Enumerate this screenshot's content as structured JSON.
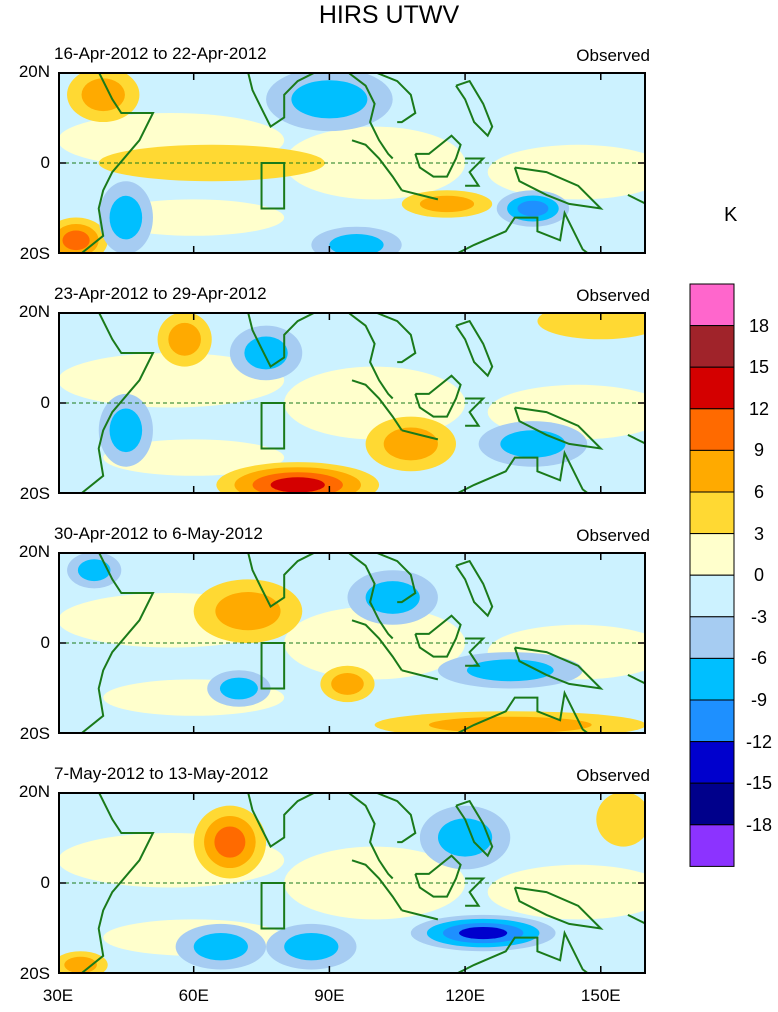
{
  "chart_data": {
    "type": "heatmap",
    "title": "HIRS UTWV",
    "units": "K",
    "x_ticks": [
      "30E",
      "60E",
      "90E",
      "120E",
      "150E"
    ],
    "x_tick_values": [
      30,
      60,
      90,
      120,
      150
    ],
    "y_ticks": [
      "20N",
      "0",
      "20S"
    ],
    "y_tick_values": [
      20,
      0,
      -20
    ],
    "lon_range": [
      30,
      160
    ],
    "lat_range": [
      -20,
      20
    ],
    "colorbar": {
      "levels": [
        18,
        15,
        12,
        9,
        6,
        3,
        0,
        -3,
        -6,
        -9,
        -12,
        -15,
        -18
      ],
      "colors": [
        "#ff66cc",
        "#a0232a",
        "#d40000",
        "#ff6a00",
        "#ffaa00",
        "#ffd933",
        "#ffffcc",
        "#ccf2ff",
        "#a6ccf2",
        "#00bfff",
        "#1e90ff",
        "#0000cd",
        "#00008b",
        "#8c33ff"
      ]
    },
    "panels": [
      {
        "label": "16-Apr-2012 to 22-Apr-2012",
        "tag": "Observed",
        "anomalies": [
          {
            "lon": 40,
            "lat": 15,
            "rx": 8,
            "ry": 6,
            "value": 6
          },
          {
            "lon": 34,
            "lat": -17,
            "rx": 7,
            "ry": 5,
            "value": 9
          },
          {
            "lon": 45,
            "lat": -12,
            "rx": 6,
            "ry": 8,
            "value": -6
          },
          {
            "lon": 90,
            "lat": 14,
            "rx": 14,
            "ry": 7,
            "value": -6
          },
          {
            "lon": 116,
            "lat": -9,
            "rx": 10,
            "ry": 3,
            "value": 6
          },
          {
            "lon": 135,
            "lat": -10,
            "rx": 8,
            "ry": 4,
            "value": -9
          },
          {
            "lon": 96,
            "lat": -18,
            "rx": 10,
            "ry": 4,
            "value": -6
          },
          {
            "lon": 64,
            "lat": 0,
            "rx": 25,
            "ry": 4,
            "value": 3
          }
        ]
      },
      {
        "label": "23-Apr-2012 to 29-Apr-2012",
        "tag": "Observed",
        "anomalies": [
          {
            "lon": 83,
            "lat": -18,
            "rx": 18,
            "ry": 5,
            "value": 12
          },
          {
            "lon": 76,
            "lat": 11,
            "rx": 8,
            "ry": 6,
            "value": -6
          },
          {
            "lon": 58,
            "lat": 14,
            "rx": 6,
            "ry": 6,
            "value": 6
          },
          {
            "lon": 45,
            "lat": -6,
            "rx": 6,
            "ry": 8,
            "value": -6
          },
          {
            "lon": 108,
            "lat": -9,
            "rx": 10,
            "ry": 6,
            "value": 6
          },
          {
            "lon": 135,
            "lat": -9,
            "rx": 12,
            "ry": 5,
            "value": -6
          },
          {
            "lon": 150,
            "lat": 18,
            "rx": 14,
            "ry": 4,
            "value": 3
          }
        ]
      },
      {
        "label": "30-Apr-2012 to 6-May-2012",
        "tag": "Observed",
        "anomalies": [
          {
            "lon": 72,
            "lat": 7,
            "rx": 12,
            "ry": 7,
            "value": 6
          },
          {
            "lon": 70,
            "lat": -10,
            "rx": 7,
            "ry": 4,
            "value": -6
          },
          {
            "lon": 94,
            "lat": -9,
            "rx": 6,
            "ry": 4,
            "value": 6
          },
          {
            "lon": 130,
            "lat": -6,
            "rx": 16,
            "ry": 4,
            "value": -6
          },
          {
            "lon": 130,
            "lat": -18,
            "rx": 30,
            "ry": 3,
            "value": 6
          },
          {
            "lon": 104,
            "lat": 10,
            "rx": 10,
            "ry": 6,
            "value": -6
          },
          {
            "lon": 38,
            "lat": 16,
            "rx": 6,
            "ry": 4,
            "value": -6
          }
        ]
      },
      {
        "label": "7-May-2012 to 13-May-2012",
        "tag": "Observed",
        "anomalies": [
          {
            "lon": 68,
            "lat": 9,
            "rx": 8,
            "ry": 8,
            "value": 9
          },
          {
            "lon": 124,
            "lat": -11,
            "rx": 16,
            "ry": 4,
            "value": -12
          },
          {
            "lon": 66,
            "lat": -14,
            "rx": 10,
            "ry": 5,
            "value": -6
          },
          {
            "lon": 86,
            "lat": -14,
            "rx": 10,
            "ry": 5,
            "value": -6
          },
          {
            "lon": 120,
            "lat": 10,
            "rx": 10,
            "ry": 7,
            "value": -6
          },
          {
            "lon": 35,
            "lat": -18,
            "rx": 6,
            "ry": 3,
            "value": 6
          },
          {
            "lon": 155,
            "lat": 14,
            "rx": 6,
            "ry": 6,
            "value": 3
          }
        ]
      }
    ]
  }
}
